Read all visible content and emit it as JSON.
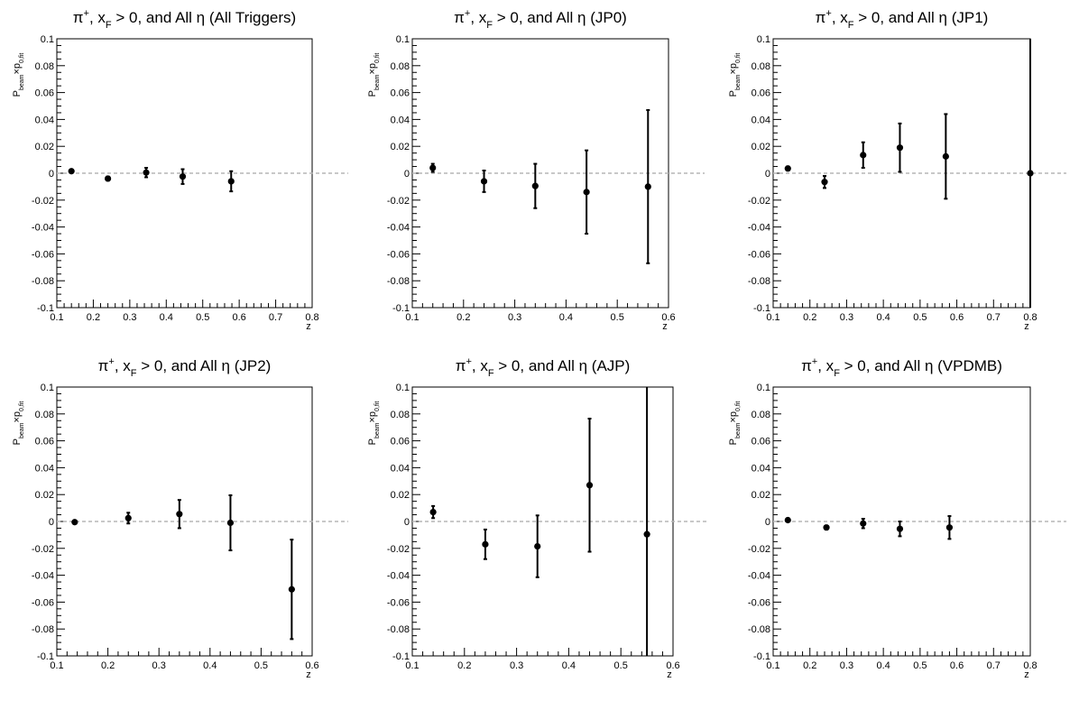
{
  "chart_data": [
    {
      "type": "scatter",
      "title": {
        "prefix": "π",
        "sup": "+",
        "mid": ", x",
        "sub": "F",
        "suffix": " > 0, and All η (All Triggers)"
      },
      "xlabel": "z",
      "ylabel": {
        "main": "P",
        "sub1": "beam",
        "times": "×p",
        "sub2": "0,fit"
      },
      "xlim": [
        0.1,
        0.8
      ],
      "ylim": [
        -0.1,
        0.1
      ],
      "xticks": [
        "0.1",
        "0.2",
        "0.3",
        "0.4",
        "0.5",
        "0.6",
        "0.7",
        "0.8"
      ],
      "yticks": [
        "-0.1",
        "-0.08",
        "-0.06",
        "-0.04",
        "-0.02",
        "0",
        "0.02",
        "0.04",
        "0.06",
        "0.08",
        "0.1"
      ],
      "reference_line": 0,
      "points": [
        {
          "x": 0.14,
          "y": 0.0015,
          "err": 0.0008
        },
        {
          "x": 0.24,
          "y": -0.004,
          "err": 0.0015
        },
        {
          "x": 0.345,
          "y": 0.0005,
          "err": 0.0035
        },
        {
          "x": 0.445,
          "y": -0.0025,
          "err": 0.0055
        },
        {
          "x": 0.578,
          "y": -0.006,
          "err": 0.0075
        }
      ]
    },
    {
      "type": "scatter",
      "title": {
        "prefix": "π",
        "sup": "+",
        "mid": ", x",
        "sub": "F",
        "suffix": " > 0, and All η (JP0)"
      },
      "xlabel": "z",
      "ylabel": {
        "main": "P",
        "sub1": "beam",
        "times": "×p",
        "sub2": "0,fit"
      },
      "xlim": [
        0.1,
        0.6
      ],
      "ylim": [
        -0.1,
        0.1
      ],
      "xticks": [
        "0.1",
        "0.2",
        "0.3",
        "0.4",
        "0.5",
        "0.6"
      ],
      "yticks": [
        "-0.1",
        "-0.08",
        "-0.06",
        "-0.04",
        "-0.02",
        "0",
        "0.02",
        "0.04",
        "0.06",
        "0.08",
        "0.1"
      ],
      "reference_line": 0,
      "points": [
        {
          "x": 0.14,
          "y": 0.004,
          "err": 0.003
        },
        {
          "x": 0.24,
          "y": -0.006,
          "err": 0.008
        },
        {
          "x": 0.34,
          "y": -0.0095,
          "err": 0.0165
        },
        {
          "x": 0.44,
          "y": -0.014,
          "err": 0.031
        },
        {
          "x": 0.56,
          "y": -0.01,
          "err": 0.057
        }
      ]
    },
    {
      "type": "scatter",
      "title": {
        "prefix": "π",
        "sup": "+",
        "mid": ", x",
        "sub": "F",
        "suffix": " > 0, and All η (JP1)"
      },
      "xlabel": "z",
      "ylabel": {
        "main": "P",
        "sub1": "beam",
        "times": "×p",
        "sub2": "0,fit"
      },
      "xlim": [
        0.1,
        0.8
      ],
      "ylim": [
        -0.1,
        0.1
      ],
      "xticks": [
        "0.1",
        "0.2",
        "0.3",
        "0.4",
        "0.5",
        "0.6",
        "0.7",
        "0.8"
      ],
      "yticks": [
        "-0.1",
        "-0.08",
        "-0.06",
        "-0.04",
        "-0.02",
        "0",
        "0.02",
        "0.04",
        "0.06",
        "0.08",
        "0.1"
      ],
      "reference_line": 0,
      "points": [
        {
          "x": 0.14,
          "y": 0.0035,
          "err": 0.0015
        },
        {
          "x": 0.24,
          "y": -0.0065,
          "err": 0.0045
        },
        {
          "x": 0.345,
          "y": 0.0135,
          "err": 0.0095
        },
        {
          "x": 0.445,
          "y": 0.019,
          "err": 0.018
        },
        {
          "x": 0.57,
          "y": 0.0125,
          "err": 0.0315
        },
        {
          "x": 0.8,
          "y": 0.0,
          "err": 0.15
        }
      ]
    },
    {
      "type": "scatter",
      "title": {
        "prefix": "π",
        "sup": "+",
        "mid": ", x",
        "sub": "F",
        "suffix": " > 0, and All η (JP2)"
      },
      "xlabel": "z",
      "ylabel": {
        "main": "P",
        "sub1": "beam",
        "times": "×p",
        "sub2": "0,fit"
      },
      "xlim": [
        0.1,
        0.6
      ],
      "ylim": [
        -0.1,
        0.1
      ],
      "xticks": [
        "0.1",
        "0.2",
        "0.3",
        "0.4",
        "0.5",
        "0.6"
      ],
      "yticks": [
        "-0.1",
        "-0.08",
        "-0.06",
        "-0.04",
        "-0.02",
        "0",
        "0.02",
        "0.04",
        "0.06",
        "0.08",
        "0.1"
      ],
      "reference_line": 0,
      "points": [
        {
          "x": 0.135,
          "y": -0.0005,
          "err": 0.0008
        },
        {
          "x": 0.24,
          "y": 0.0025,
          "err": 0.004
        },
        {
          "x": 0.34,
          "y": 0.0055,
          "err": 0.0105
        },
        {
          "x": 0.44,
          "y": -0.001,
          "err": 0.0205
        },
        {
          "x": 0.56,
          "y": -0.0505,
          "err": 0.037
        }
      ]
    },
    {
      "type": "scatter",
      "title": {
        "prefix": "π",
        "sup": "+",
        "mid": ", x",
        "sub": "F",
        "suffix": " > 0, and All η (AJP)"
      },
      "xlabel": "z",
      "ylabel": {
        "main": "P",
        "sub1": "beam",
        "times": "×p",
        "sub2": "0,fit"
      },
      "xlim": [
        0.1,
        0.6
      ],
      "ylim": [
        -0.1,
        0.1
      ],
      "xticks": [
        "0.1",
        "0.2",
        "0.3",
        "0.4",
        "0.5",
        "0.6"
      ],
      "yticks": [
        "-0.1",
        "-0.08",
        "-0.06",
        "-0.04",
        "-0.02",
        "0",
        "0.02",
        "0.04",
        "0.06",
        "0.08",
        "0.1"
      ],
      "reference_line": 0,
      "points": [
        {
          "x": 0.14,
          "y": 0.007,
          "err": 0.0045
        },
        {
          "x": 0.24,
          "y": -0.017,
          "err": 0.011
        },
        {
          "x": 0.34,
          "y": -0.0185,
          "err": 0.023
        },
        {
          "x": 0.44,
          "y": 0.027,
          "err": 0.0495
        },
        {
          "x": 0.55,
          "y": -0.0095,
          "err": 0.11
        }
      ]
    },
    {
      "type": "scatter",
      "title": {
        "prefix": "π",
        "sup": "+",
        "mid": ", x",
        "sub": "F",
        "suffix": " > 0, and All η (VPDMB)"
      },
      "xlabel": "z",
      "ylabel": {
        "main": "P",
        "sub1": "beam",
        "times": "×p",
        "sub2": "0,fit"
      },
      "xlim": [
        0.1,
        0.8
      ],
      "ylim": [
        -0.1,
        0.1
      ],
      "xticks": [
        "0.1",
        "0.2",
        "0.3",
        "0.4",
        "0.5",
        "0.6",
        "0.7",
        "0.8"
      ],
      "yticks": [
        "-0.1",
        "-0.08",
        "-0.06",
        "-0.04",
        "-0.02",
        "0",
        "0.02",
        "0.04",
        "0.06",
        "0.08",
        "0.1"
      ],
      "reference_line": 0,
      "points": [
        {
          "x": 0.14,
          "y": 0.001,
          "err": 0.0008
        },
        {
          "x": 0.245,
          "y": -0.0045,
          "err": 0.0015
        },
        {
          "x": 0.345,
          "y": -0.0015,
          "err": 0.0035
        },
        {
          "x": 0.445,
          "y": -0.0055,
          "err": 0.0055
        },
        {
          "x": 0.58,
          "y": -0.0045,
          "err": 0.0085
        }
      ]
    }
  ]
}
